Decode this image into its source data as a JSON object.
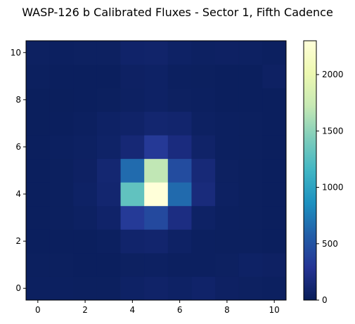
{
  "chart_data": {
    "type": "heatmap",
    "title": "WASP-126 b Calibrated Fluxes - Sector 1, Fifth Cadence",
    "xlabel": "",
    "ylabel": "",
    "x": [
      0,
      1,
      2,
      3,
      4,
      5,
      6,
      7,
      8,
      9,
      10
    ],
    "y": [
      0,
      1,
      2,
      3,
      4,
      5,
      6,
      7,
      8,
      9,
      10
    ],
    "xlim": [
      -0.5,
      10.5
    ],
    "ylim": [
      -0.5,
      10.5
    ],
    "xticks": [
      0,
      2,
      4,
      6,
      8,
      10
    ],
    "yticks": [
      0,
      2,
      4,
      6,
      8,
      10
    ],
    "colormap": "YlGnBu",
    "colorbar": {
      "min": 0,
      "max": 2300,
      "ticks": [
        0,
        500,
        1000,
        1500,
        2000
      ]
    },
    "grid": false,
    "values": [
      [
        40,
        40,
        35,
        35,
        60,
        75,
        60,
        80,
        55,
        45,
        40
      ],
      [
        35,
        35,
        30,
        30,
        45,
        50,
        40,
        40,
        45,
        60,
        55
      ],
      [
        30,
        30,
        30,
        40,
        90,
        100,
        60,
        40,
        35,
        35,
        30
      ],
      [
        30,
        35,
        50,
        80,
        330,
        430,
        200,
        60,
        40,
        35,
        30
      ],
      [
        30,
        35,
        60,
        110,
        1300,
        2300,
        640,
        170,
        50,
        35,
        30
      ],
      [
        30,
        35,
        55,
        120,
        650,
        1700,
        450,
        150,
        45,
        35,
        30
      ],
      [
        30,
        40,
        50,
        70,
        140,
        320,
        180,
        75,
        40,
        35,
        30
      ],
      [
        25,
        30,
        40,
        60,
        75,
        110,
        100,
        50,
        40,
        35,
        30
      ],
      [
        25,
        25,
        30,
        35,
        50,
        60,
        45,
        40,
        30,
        30,
        30
      ],
      [
        35,
        30,
        30,
        30,
        55,
        60,
        40,
        35,
        30,
        30,
        55
      ],
      [
        45,
        40,
        45,
        45,
        80,
        85,
        60,
        50,
        55,
        50,
        40
      ]
    ]
  }
}
